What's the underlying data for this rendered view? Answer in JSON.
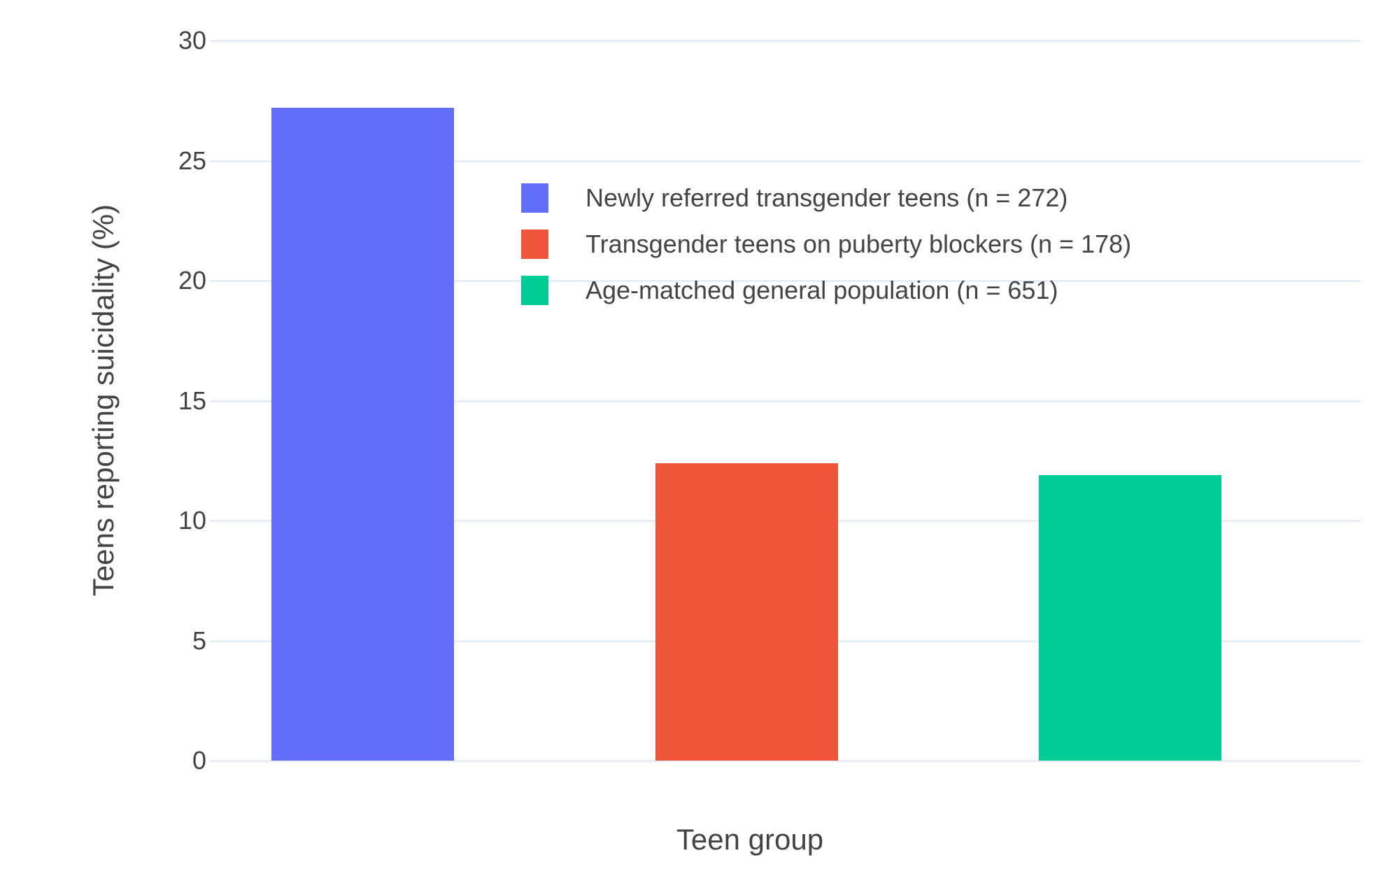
{
  "chart_data": {
    "type": "bar",
    "categories": [
      "Newly referred transgender teens (n = 272)",
      "Transgender teens on puberty blockers (n = 178)",
      "Age-matched general population (n = 651)"
    ],
    "values": [
      27.2,
      12.4,
      11.9
    ],
    "bar_colors": [
      "#636EFA",
      "#EF553B",
      "#00CC96"
    ],
    "title": "",
    "xlabel": "Teen group",
    "ylabel": "Teens reporting suicidality (%)",
    "ylim": [
      0,
      30
    ],
    "yticks": [
      0,
      5,
      10,
      15,
      20,
      25,
      30
    ],
    "ytick_labels": [
      "0",
      "5",
      "10",
      "15",
      "20",
      "25",
      "30"
    ],
    "grid": true,
    "legend": {
      "position": "inside-top-center",
      "entries": [
        {
          "label": "Newly referred transgender teens (n = 272)",
          "color": "#636EFA"
        },
        {
          "label": "Transgender teens on puberty blockers (n = 178)",
          "color": "#EF553B"
        },
        {
          "label": "Age-matched general population (n = 651)",
          "color": "#00CC96"
        }
      ]
    },
    "colors": {
      "background": "#FFFFFF",
      "grid": "#E8EEF6",
      "text": "#444444"
    }
  }
}
